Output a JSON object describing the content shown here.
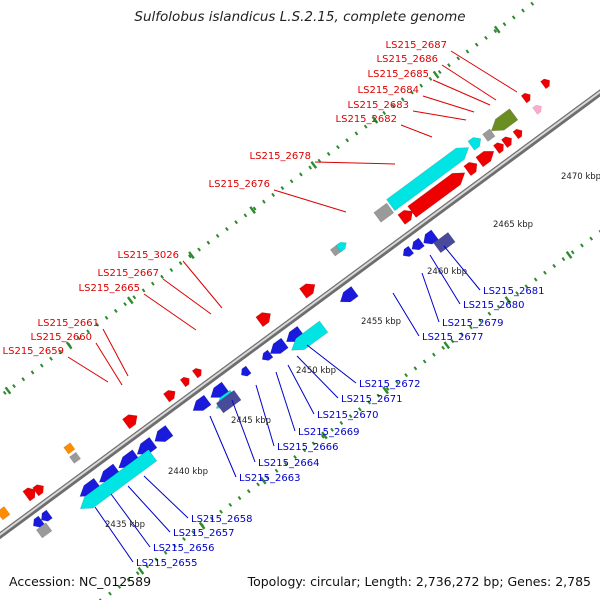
{
  "title": "Sulfolobus islandicus L.S.2.15, complete genome",
  "footer": {
    "accession_label": "Accession:",
    "accession": "NC_012589",
    "topology_label": "Topology:",
    "topology": "circular",
    "length_label": "Length:",
    "length": "2,736,272 bp",
    "genes_label": "Genes:",
    "genes": "2,785"
  },
  "colors": {
    "backbone": "#8c8c8c",
    "forward_label": "#dd0000",
    "reverse_label": "#0000cc",
    "tick": "#2e8b2e",
    "red_gene": "#ee0000",
    "blue_gene": "#1a1add",
    "cyan_gene": "#00e4e4",
    "navy_gene": "#4a4a9a",
    "gray_gene": "#9a9a9a",
    "olive_gene": "#6b8e23",
    "orange_gene": "#ff8c00",
    "pink_gene": "#ffaacc"
  },
  "scale_labels": [
    "2435 kbp",
    "2440 kbp",
    "2445 kbp",
    "2450 kbp",
    "2455 kbp",
    "2460 kbp",
    "2465 kbp",
    "2470 kbp"
  ],
  "forward_genes": [
    "LS215_2687",
    "LS215_2686",
    "LS215_2685",
    "LS215_2684",
    "LS215_2683",
    "LS215_2682",
    "LS215_2678",
    "LS215_2676",
    "LS215_3026",
    "LS215_2667",
    "LS215_2665",
    "LS215_2661",
    "LS215_2660",
    "LS215_2659"
  ],
  "reverse_genes": [
    "LS215_2681",
    "LS215_2680",
    "LS215_2679",
    "LS215_2677",
    "LS215_2672",
    "LS215_2671",
    "LS215_2670",
    "LS215_2669",
    "LS215_2666",
    "LS215_2664",
    "LS215_2663",
    "LS215_2658",
    "LS215_2657",
    "LS215_2656",
    "LS215_2655"
  ]
}
